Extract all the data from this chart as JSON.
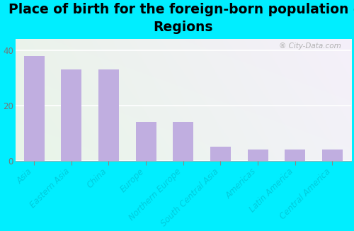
{
  "title": "Place of birth for the foreign-born population -\nRegions",
  "categories": [
    "Asia",
    "Eastern Asia",
    "China",
    "Europe",
    "Northern Europe",
    "South Central Asia",
    "Americas",
    "Latin America",
    "Central America"
  ],
  "values": [
    38,
    33,
    33,
    14,
    14,
    5,
    4,
    4,
    4
  ],
  "bar_color": "#c0aee0",
  "background_outer": "#00eeff",
  "yticks": [
    0,
    20,
    40
  ],
  "ylim": [
    0,
    44
  ],
  "title_fontsize": 13.5,
  "tick_fontsize": 8.5,
  "watermark": "City-Data.com",
  "bg_colors": [
    "#e8f4e4",
    "#ddeedd",
    "#e4eef8",
    "#eef4f8"
  ],
  "grid_color": "#ffffff",
  "xlabel_color": "#00ccdd",
  "ylabel_color": "#777777"
}
